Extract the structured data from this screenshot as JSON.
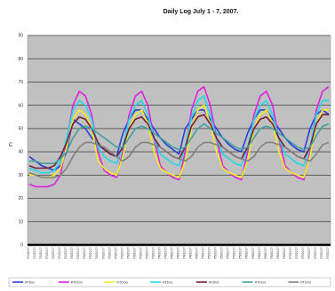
{
  "chart_data": {
    "type": "line",
    "title": "Daily Log July 1 - 7, 2007.",
    "xlabel": "",
    "ylabel": "C",
    "ylim": [
      0,
      90
    ],
    "yticks": [
      0,
      10,
      20,
      30,
      40,
      50,
      60,
      70,
      80,
      90
    ],
    "grid": true,
    "legend_position": "bottom",
    "plot_background": "#c0c0c0",
    "x": [
      "7/1/2007",
      "7/1/2007",
      "7/1/2007",
      "7/1/2007",
      "7/1/2007",
      "7/1/2007",
      "7/1/2007",
      "7/2/2007",
      "7/2/2007",
      "7/2/2007",
      "7/2/2007",
      "7/2/2007",
      "7/2/2007",
      "7/2/2007",
      "7/3/2007",
      "7/3/2007",
      "7/3/2007",
      "7/3/2007",
      "7/3/2007",
      "7/3/2007",
      "7/3/2007",
      "7/4/2007",
      "7/4/2007",
      "7/4/2007",
      "7/4/2007",
      "7/4/2007",
      "7/4/2007",
      "7/4/2007",
      "7/5/2007",
      "7/5/2007",
      "7/5/2007",
      "7/5/2007",
      "7/5/2007",
      "7/5/2007",
      "7/5/2007",
      "7/6/2007",
      "7/6/2007",
      "7/6/2007",
      "7/6/2007",
      "7/6/2007",
      "7/6/2007",
      "7/6/2007",
      "7/7/2007",
      "7/7/2007",
      "7/7/2007",
      "7/7/2007",
      "7/7/2007",
      "7/7/2007",
      "7/7/2007"
    ],
    "series": [
      {
        "name": "RTDxx",
        "color": "#2a3fd6",
        "values": [
          38,
          36,
          34,
          33,
          32,
          34,
          40,
          54,
          52,
          50,
          46,
          43,
          41,
          39,
          38,
          48,
          54,
          58,
          58,
          54,
          50,
          46,
          43,
          41,
          39,
          50,
          54,
          58,
          58,
          54,
          50,
          46,
          43,
          41,
          40,
          48,
          54,
          58,
          58,
          54,
          50,
          46,
          43,
          41,
          40,
          50,
          56,
          58,
          56
        ]
      },
      {
        "name": "RTDnnn",
        "color": "#e020e0",
        "values": [
          26,
          25,
          25,
          25,
          26,
          30,
          45,
          60,
          66,
          64,
          56,
          40,
          32,
          30,
          29,
          40,
          56,
          64,
          66,
          60,
          46,
          34,
          31,
          29,
          28,
          40,
          58,
          66,
          68,
          60,
          46,
          34,
          31,
          29,
          28,
          40,
          56,
          64,
          66,
          60,
          46,
          34,
          31,
          29,
          28,
          40,
          58,
          66,
          68
        ]
      },
      {
        "name": "RTDxxx",
        "color": "#f0f020",
        "values": [
          30,
          30,
          29,
          29,
          30,
          33,
          42,
          54,
          58,
          56,
          50,
          36,
          33,
          31,
          30,
          38,
          50,
          56,
          58,
          52,
          40,
          33,
          31,
          30,
          29,
          36,
          50,
          58,
          60,
          52,
          40,
          33,
          31,
          30,
          29,
          36,
          50,
          56,
          58,
          52,
          40,
          33,
          31,
          30,
          29,
          38,
          52,
          58,
          58
        ]
      },
      {
        "name": "RTDn1",
        "color": "#20d8e8",
        "values": [
          33,
          32,
          31,
          31,
          32,
          36,
          46,
          58,
          62,
          60,
          54,
          42,
          38,
          36,
          35,
          42,
          54,
          60,
          62,
          56,
          46,
          39,
          37,
          35,
          34,
          42,
          55,
          62,
          64,
          56,
          46,
          39,
          37,
          35,
          34,
          42,
          54,
          60,
          62,
          56,
          46,
          39,
          37,
          35,
          34,
          42,
          56,
          62,
          62
        ]
      },
      {
        "name": "RTDnd",
        "color": "#7a1a3a",
        "values": [
          34,
          33,
          33,
          33,
          34,
          38,
          44,
          52,
          55,
          54,
          50,
          44,
          41,
          39,
          38,
          42,
          50,
          54,
          55,
          52,
          46,
          42,
          40,
          38,
          37,
          42,
          51,
          55,
          56,
          52,
          46,
          42,
          40,
          38,
          37,
          42,
          50,
          54,
          55,
          52,
          46,
          42,
          40,
          38,
          37,
          42,
          52,
          56,
          56
        ]
      },
      {
        "name": "RTDnnt",
        "color": "#40a0a0",
        "values": [
          36,
          36,
          35,
          35,
          35,
          37,
          40,
          46,
          50,
          51,
          50,
          48,
          46,
          44,
          42,
          42,
          46,
          50,
          51,
          50,
          48,
          46,
          44,
          42,
          41,
          42,
          46,
          50,
          52,
          50,
          48,
          46,
          44,
          42,
          41,
          42,
          46,
          50,
          51,
          50,
          48,
          46,
          44,
          42,
          41,
          42,
          47,
          51,
          52
        ]
      },
      {
        "name": "RTDnd",
        "color": "#808080",
        "values": [
          31,
          30,
          29,
          29,
          29,
          30,
          33,
          38,
          42,
          44,
          44,
          43,
          42,
          40,
          38,
          36,
          38,
          42,
          44,
          44,
          43,
          42,
          40,
          38,
          37,
          36,
          38,
          42,
          44,
          44,
          43,
          42,
          40,
          38,
          37,
          36,
          38,
          42,
          44,
          44,
          43,
          42,
          40,
          38,
          37,
          36,
          39,
          43,
          44
        ]
      }
    ]
  }
}
